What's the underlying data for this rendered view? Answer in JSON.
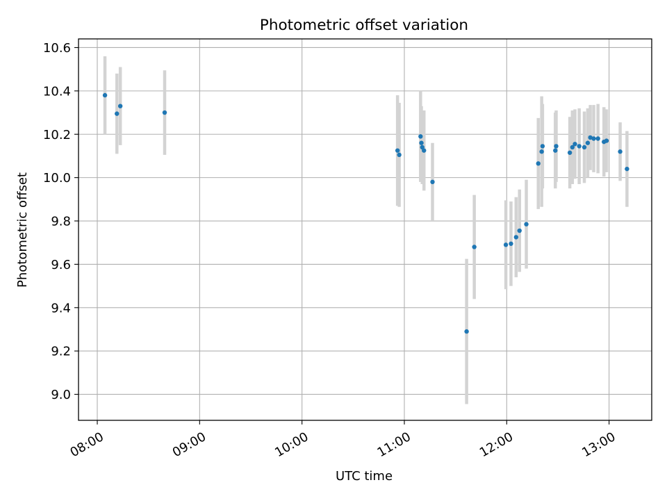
{
  "chart_data": {
    "type": "scatter",
    "title": "Photometric offset variation",
    "xlabel": "UTC time",
    "ylabel": "Photometric offset",
    "xlim": [
      "07:49",
      "13:25"
    ],
    "ylim": [
      8.88,
      10.64
    ],
    "x_ticks": [
      "08:00",
      "09:00",
      "10:00",
      "11:00",
      "12:00",
      "13:00"
    ],
    "y_ticks": [
      "9.0",
      "9.2",
      "9.4",
      "9.6",
      "9.8",
      "10.0",
      "10.2",
      "10.4",
      "10.6"
    ],
    "grid": true,
    "colors": {
      "point": "#1f77b4",
      "error_bar": "#d3d3d3",
      "grid": "#b0b0b0"
    },
    "series": [
      {
        "points": [
          {
            "t": "08:04:30",
            "y": 10.38,
            "err": 0.18
          },
          {
            "t": "08:11:30",
            "y": 10.295,
            "err": 0.185
          },
          {
            "t": "08:13:30",
            "y": 10.33,
            "err": 0.18
          },
          {
            "t": "08:39:30",
            "y": 10.3,
            "err": 0.195
          },
          {
            "t": "10:56:00",
            "y": 10.125,
            "err": 0.255
          },
          {
            "t": "10:57:00",
            "y": 10.105,
            "err": 0.24
          },
          {
            "t": "11:09:30",
            "y": 10.19,
            "err": 0.21
          },
          {
            "t": "11:10:00",
            "y": 10.16,
            "err": 0.17
          },
          {
            "t": "11:10:30",
            "y": 10.14,
            "err": 0.17
          },
          {
            "t": "11:11:30",
            "y": 10.125,
            "err": 0.185
          },
          {
            "t": "11:16:30",
            "y": 9.98,
            "err": 0.18
          },
          {
            "t": "11:36:30",
            "y": 9.29,
            "err": 0.335
          },
          {
            "t": "11:41:00",
            "y": 9.68,
            "err": 0.24
          },
          {
            "t": "11:59:30",
            "y": 9.69,
            "err": 0.205
          },
          {
            "t": "12:02:30",
            "y": 9.695,
            "err": 0.195
          },
          {
            "t": "12:05:30",
            "y": 9.725,
            "err": 0.185
          },
          {
            "t": "12:07:30",
            "y": 9.755,
            "err": 0.19
          },
          {
            "t": "12:11:30",
            "y": 9.785,
            "err": 0.205
          },
          {
            "t": "12:18:30",
            "y": 10.065,
            "err": 0.21
          },
          {
            "t": "12:20:30",
            "y": 10.12,
            "err": 0.255
          },
          {
            "t": "12:21:00",
            "y": 10.145,
            "err": 0.195
          },
          {
            "t": "12:28:30",
            "y": 10.125,
            "err": 0.175
          },
          {
            "t": "12:29:00",
            "y": 10.145,
            "err": 0.165
          },
          {
            "t": "12:37:00",
            "y": 10.115,
            "err": 0.165
          },
          {
            "t": "12:38:30",
            "y": 10.14,
            "err": 0.17
          },
          {
            "t": "12:40:00",
            "y": 10.155,
            "err": 0.16
          },
          {
            "t": "12:42:30",
            "y": 10.145,
            "err": 0.175
          },
          {
            "t": "12:45:30",
            "y": 10.14,
            "err": 0.165
          },
          {
            "t": "12:47:30",
            "y": 10.16,
            "err": 0.16
          },
          {
            "t": "12:49:00",
            "y": 10.185,
            "err": 0.15
          },
          {
            "t": "12:51:00",
            "y": 10.18,
            "err": 0.155
          },
          {
            "t": "12:53:30",
            "y": 10.18,
            "err": 0.16
          },
          {
            "t": "12:57:00",
            "y": 10.165,
            "err": 0.16
          },
          {
            "t": "12:58:30",
            "y": 10.17,
            "err": 0.145
          },
          {
            "t": "13:06:30",
            "y": 10.12,
            "err": 0.135
          },
          {
            "t": "13:10:30",
            "y": 10.04,
            "err": 0.175
          }
        ]
      }
    ]
  }
}
